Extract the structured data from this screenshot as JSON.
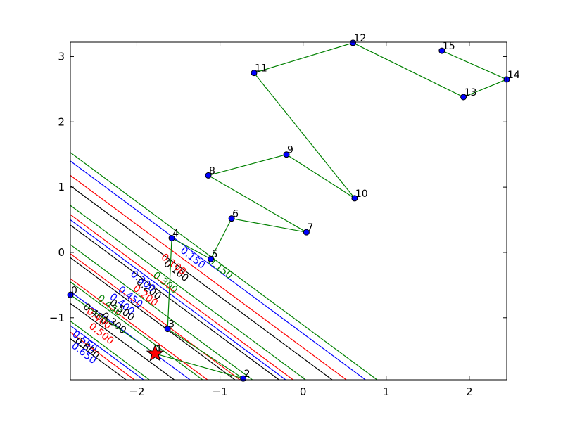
{
  "chart_data": {
    "type": "line",
    "title": "",
    "xlabel": "",
    "ylabel": "",
    "xlim": [
      -2.8,
      2.45
    ],
    "ylim": [
      -1.95,
      3.22
    ],
    "x_ticks": [
      -2,
      -1,
      0,
      1,
      2
    ],
    "y_ticks": [
      -1,
      0,
      1,
      2,
      3
    ],
    "x_tick_labels": [
      "−2",
      "−1",
      "0",
      "1",
      "2"
    ],
    "y_tick_labels": [
      "−1",
      "0",
      "1",
      "2",
      "3"
    ],
    "grid": false,
    "legend": "none",
    "colors": {
      "path": "#008000",
      "marker": "#0000ff",
      "star": "#ff0000",
      "c_black": "#000000",
      "c_red": "#ff0000",
      "c_blue": "#0000ff",
      "c_green": "#008000"
    },
    "path": {
      "name": "",
      "points": [
        {
          "label": "0",
          "x": -2.8,
          "y": -0.65
        },
        {
          "label": "1",
          "x": -1.78,
          "y": -1.55
        },
        {
          "label": "2",
          "x": -0.72,
          "y": -1.93
        },
        {
          "label": "3",
          "x": -1.63,
          "y": -1.17
        },
        {
          "label": "4",
          "x": -1.58,
          "y": 0.22
        },
        {
          "label": "5",
          "x": -1.11,
          "y": -0.1
        },
        {
          "label": "6",
          "x": -0.86,
          "y": 0.52
        },
        {
          "label": "7",
          "x": 0.04,
          "y": 0.31
        },
        {
          "label": "8",
          "x": -1.14,
          "y": 1.18
        },
        {
          "label": "9",
          "x": -0.2,
          "y": 1.5
        },
        {
          "label": "10",
          "x": 0.62,
          "y": 0.83
        },
        {
          "label": "11",
          "x": -0.59,
          "y": 2.75
        },
        {
          "label": "12",
          "x": 0.6,
          "y": 3.21
        },
        {
          "label": "13",
          "x": 1.93,
          "y": 2.38
        },
        {
          "label": "14",
          "x": 2.45,
          "y": 2.65
        },
        {
          "label": "15",
          "x": 1.67,
          "y": 3.09
        }
      ]
    },
    "star": {
      "x": -1.78,
      "y": -1.55
    },
    "contours": [
      {
        "color": "black",
        "lines": [
          {
            "x1": -2.8,
            "y1": 1.02,
            "x2": 0.35,
            "y2": -1.95
          },
          {
            "x1": -2.8,
            "y1": 0.42,
            "x2": -0.29,
            "y2": -1.95
          },
          {
            "x1": -2.8,
            "y1": -0.08,
            "x2": -0.82,
            "y2": -1.95
          },
          {
            "x1": -2.8,
            "y1": -0.78,
            "x2": -1.55,
            "y2": -1.95
          },
          {
            "x1": -2.8,
            "y1": -1.32,
            "x2": -2.13,
            "y2": -1.95
          }
        ]
      },
      {
        "color": "red",
        "lines": [
          {
            "x1": -2.8,
            "y1": 1.18,
            "x2": 0.52,
            "y2": -1.95
          },
          {
            "x1": -2.8,
            "y1": 0.58,
            "x2": -0.12,
            "y2": -1.95
          },
          {
            "x1": -2.8,
            "y1": -0.02,
            "x2": -0.76,
            "y2": -1.95
          },
          {
            "x1": -2.8,
            "y1": -0.4,
            "x2": -1.15,
            "y2": -1.95
          },
          {
            "x1": -2.8,
            "y1": -1.22,
            "x2": -2.03,
            "y2": -1.95
          }
        ]
      },
      {
        "color": "blue",
        "lines": [
          {
            "x1": -2.8,
            "y1": 1.4,
            "x2": 0.75,
            "y2": -1.95
          },
          {
            "x1": -2.8,
            "y1": 0.5,
            "x2": -0.21,
            "y2": -1.95
          },
          {
            "x1": -2.8,
            "y1": -0.6,
            "x2": -1.36,
            "y2": -1.95
          },
          {
            "x1": -2.8,
            "y1": -1.12,
            "x2": -1.92,
            "y2": -1.95
          }
        ]
      },
      {
        "color": "green",
        "lines": [
          {
            "x1": -2.8,
            "y1": 1.53,
            "x2": 0.89,
            "y2": -1.95
          },
          {
            "x1": -2.8,
            "y1": 0.72,
            "x2": 0.03,
            "y2": -1.95
          },
          {
            "x1": -2.8,
            "y1": 0.12,
            "x2": -0.61,
            "y2": -1.95
          },
          {
            "x1": -2.8,
            "y1": -0.45,
            "x2": -1.21,
            "y2": -1.95
          },
          {
            "x1": -2.8,
            "y1": -1.05,
            "x2": -1.85,
            "y2": -1.95
          }
        ]
      }
    ],
    "contour_labels": [
      {
        "text": "0.100",
        "color": "black",
        "x": -1.55,
        "y": -0.32,
        "angle": 38
      },
      {
        "text": "0.100",
        "color": "red",
        "x": -1.58,
        "y": -0.22,
        "angle": 38
      },
      {
        "text": "0.150",
        "color": "blue",
        "x": -1.35,
        "y": -0.12,
        "angle": 38
      },
      {
        "text": "0.150",
        "color": "green",
        "x": -1.02,
        "y": -0.28,
        "angle": 38
      },
      {
        "text": "0.200",
        "color": "black",
        "x": -1.88,
        "y": -0.6,
        "angle": 38
      },
      {
        "text": "0.200",
        "color": "red",
        "x": -1.92,
        "y": -0.7,
        "angle": 38
      },
      {
        "text": "0.300",
        "color": "blue",
        "x": -1.95,
        "y": -0.48,
        "angle": 38
      },
      {
        "text": "0.300",
        "color": "green",
        "x": -1.68,
        "y": -0.5,
        "angle": 38
      },
      {
        "text": "0.300",
        "color": "black",
        "x": -2.3,
        "y": -1.12,
        "angle": 38
      },
      {
        "text": "0.400",
        "color": "black",
        "x": -2.52,
        "y": -0.98,
        "angle": 38
      },
      {
        "text": "0.400",
        "color": "red",
        "x": -2.48,
        "y": -1.05,
        "angle": 38
      },
      {
        "text": "0.400",
        "color": "blue",
        "x": -2.2,
        "y": -0.83,
        "angle": 38
      },
      {
        "text": "0.450",
        "color": "green",
        "x": -2.35,
        "y": -0.85,
        "angle": 38
      },
      {
        "text": "0.450",
        "color": "blue",
        "x": -2.1,
        "y": -0.72,
        "angle": 38
      },
      {
        "text": "0.500",
        "color": "red",
        "x": -2.45,
        "y": -1.28,
        "angle": 38
      },
      {
        "text": "0.500",
        "color": "black",
        "x": -2.2,
        "y": -0.92,
        "angle": 38
      },
      {
        "text": "0.550",
        "color": "blue",
        "x": -2.65,
        "y": -1.4,
        "angle": 38
      },
      {
        "text": "0.600",
        "color": "black",
        "x": -2.62,
        "y": -1.5,
        "angle": 38
      },
      {
        "text": "0.650",
        "color": "blue",
        "x": -2.66,
        "y": -1.58,
        "angle": 38
      }
    ]
  }
}
